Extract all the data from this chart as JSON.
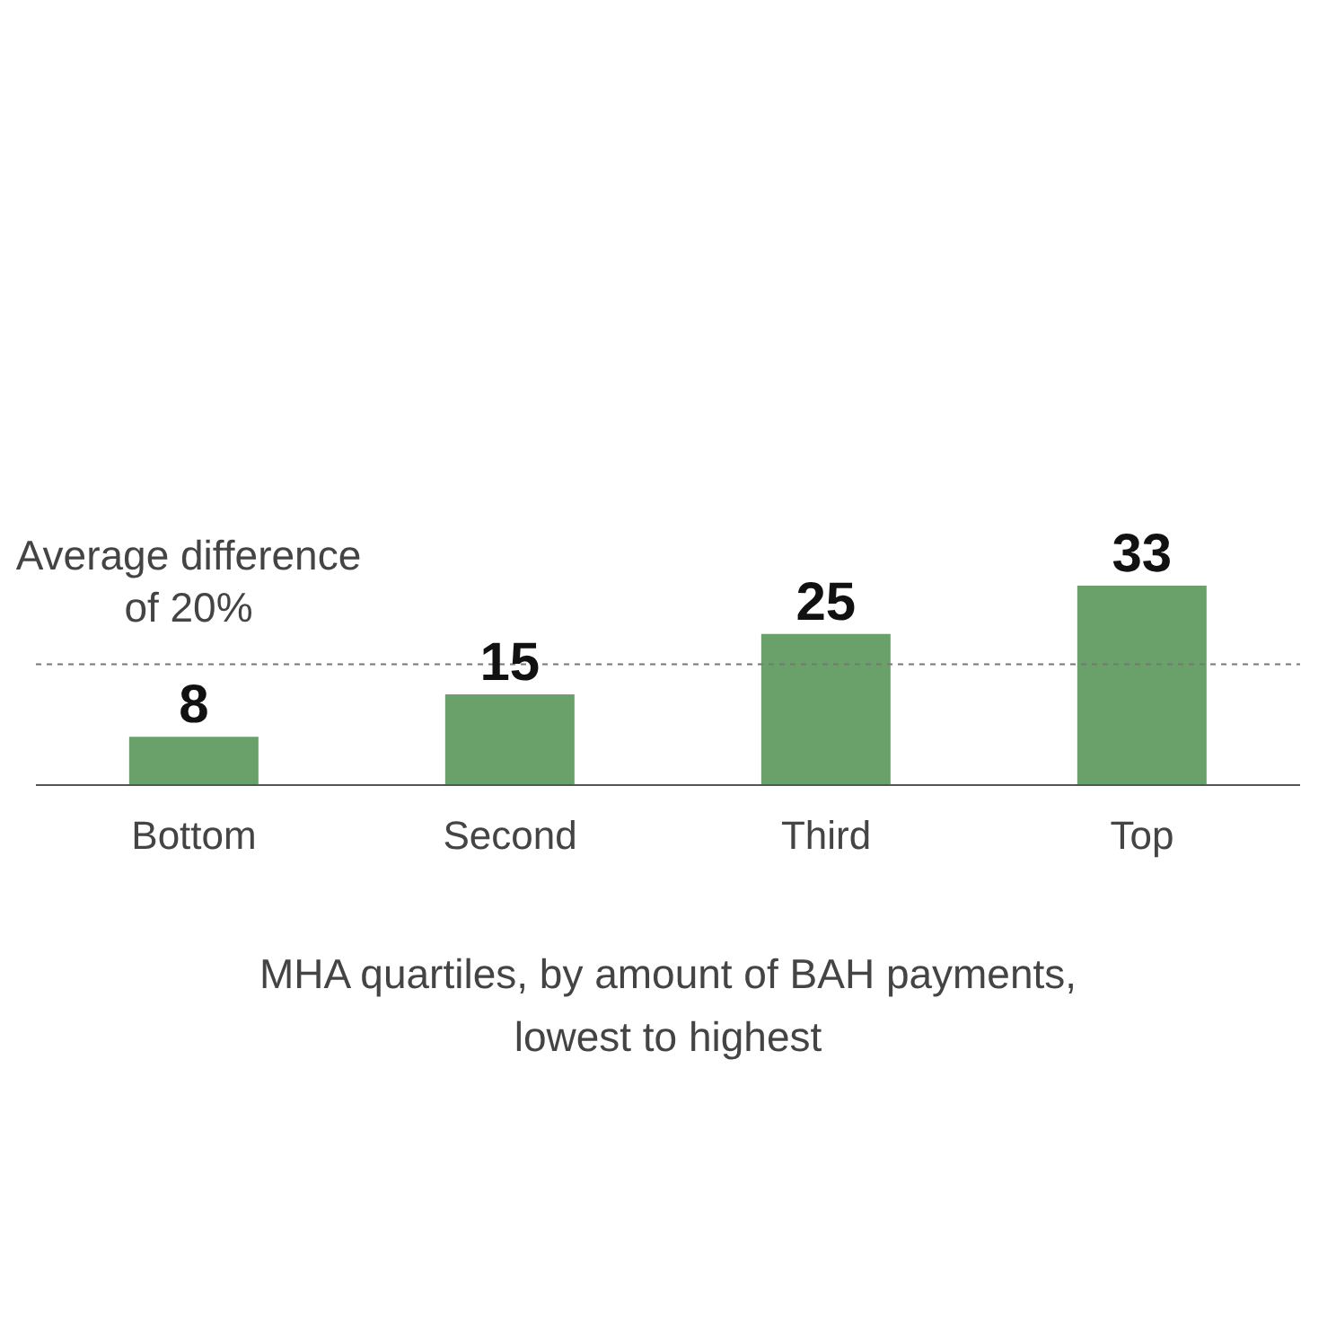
{
  "chart_data": {
    "type": "bar",
    "categories": [
      "Bottom",
      "Second",
      "Third",
      "Top"
    ],
    "values": [
      8,
      15,
      25,
      33
    ],
    "color": "#6aa06a",
    "data_labels": true,
    "xlabel": "MHA quartiles, by amount of BAH payments, lowest to highest",
    "ref_lines": [
      {
        "axis": "y",
        "value": 20,
        "label": "Average difference of 20%",
        "line_style": "dotted",
        "color": "#777777"
      }
    ]
  }
}
